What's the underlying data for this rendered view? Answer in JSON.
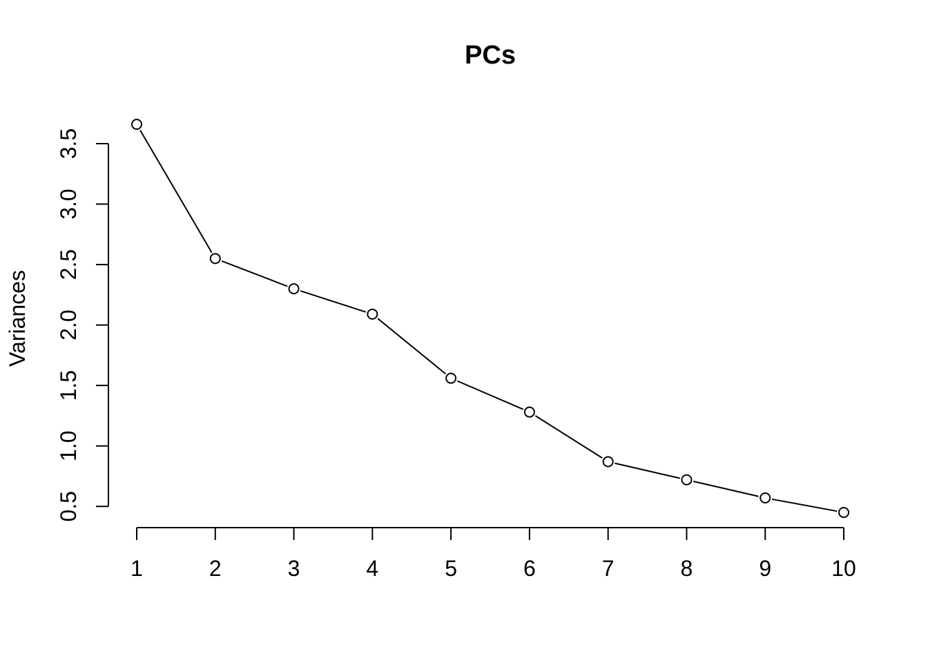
{
  "chart_data": {
    "type": "line",
    "title": "PCs",
    "xlabel": "",
    "ylabel": "Variances",
    "x": [
      1,
      2,
      3,
      4,
      5,
      6,
      7,
      8,
      9,
      10
    ],
    "x_tick_labels": [
      "1",
      "2",
      "3",
      "4",
      "5",
      "6",
      "7",
      "8",
      "9",
      "10"
    ],
    "values": [
      3.66,
      2.55,
      2.3,
      2.09,
      1.56,
      1.28,
      0.87,
      0.72,
      0.57,
      0.45
    ],
    "y_ticks": [
      0.5,
      1.0,
      1.5,
      2.0,
      2.5,
      3.0,
      3.5
    ],
    "y_tick_labels": [
      "0.5",
      "1.0",
      "1.5",
      "2.0",
      "2.5",
      "3.0",
      "3.5"
    ],
    "ylim": [
      0.45,
      3.66
    ],
    "grid": false,
    "markers": "open-circle",
    "line_color": "#000000",
    "background": "#ffffff"
  }
}
